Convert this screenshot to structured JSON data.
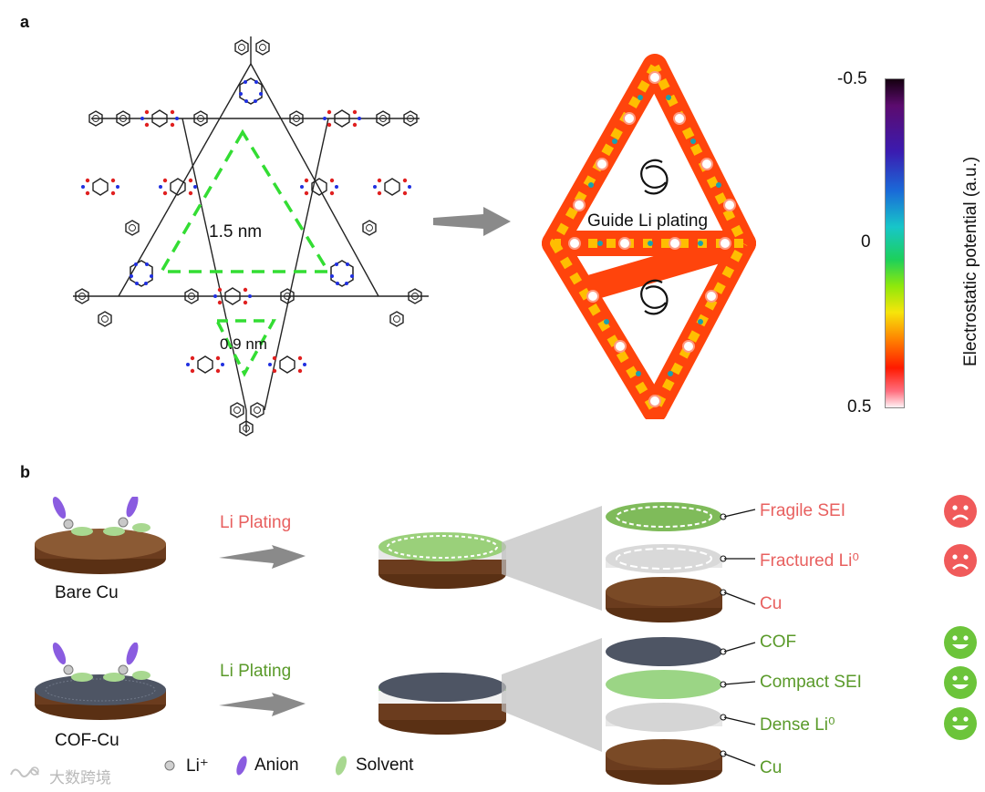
{
  "panel_a": {
    "label": "a",
    "pore_large": "1.5 nm",
    "pore_small": "0.9 nm",
    "guide_text": "Guide Li plating",
    "colorbar": {
      "title": "Electrostatic potential (a.u.)",
      "ticks": [
        "-0.5",
        "0",
        "0.5"
      ]
    }
  },
  "panel_b": {
    "label": "b",
    "row1": {
      "substrate": "Bare Cu",
      "arrow_label": "Li Plating",
      "layers": [
        "Fragile SEI",
        "Fractured Li⁰",
        "Cu"
      ],
      "faces": [
        "sad",
        "sad"
      ]
    },
    "row2": {
      "substrate": "COF-Cu",
      "arrow_label": "Li Plating",
      "layers": [
        "COF",
        "Compact SEI",
        "Dense Li⁰",
        "Cu"
      ],
      "faces": [
        "happy",
        "happy",
        "happy"
      ]
    },
    "legend": [
      "Li⁺",
      "Anion",
      "Solvent"
    ]
  },
  "watermark": "大数跨境",
  "colors": {
    "bad": "#e8605f",
    "good": "#5a9a2a",
    "dashed_green": "#33dd33",
    "copper": "#6b3c1e",
    "sad_face": "#f05a5a",
    "happy_face": "#6cc43a"
  }
}
